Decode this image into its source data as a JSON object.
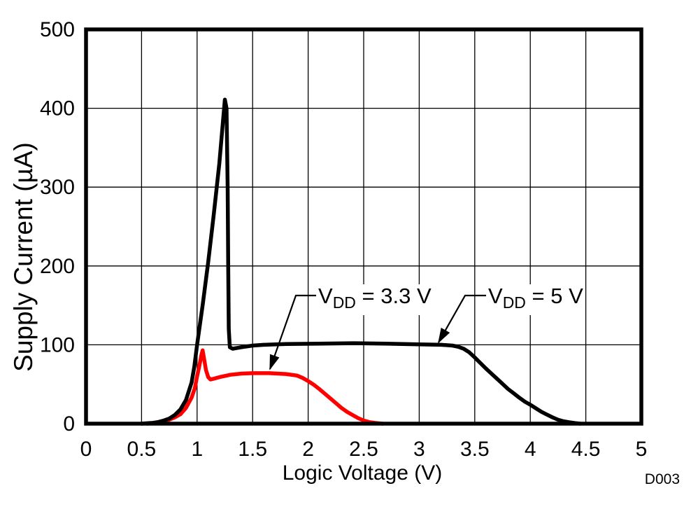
{
  "chart_data": {
    "type": "line",
    "title": "",
    "xlabel": "Logic Voltage (V)",
    "ylabel": "Supply Current (µA)",
    "xlim": [
      0,
      5
    ],
    "ylim": [
      0,
      500
    ],
    "grid": true,
    "legend_position": "none",
    "watermark": "D003",
    "x_ticks": {
      "values": [
        0,
        0.5,
        1,
        1.5,
        2,
        2.5,
        3,
        3.5,
        4,
        4.5,
        5
      ],
      "labels": [
        "0",
        "0.5",
        "1",
        "1.5",
        "2",
        "2.5",
        "3",
        "3.5",
        "4",
        "4.5",
        "5"
      ]
    },
    "y_ticks": {
      "values": [
        0,
        100,
        200,
        300,
        400,
        500
      ],
      "labels": [
        "0",
        "100",
        "200",
        "300",
        "400",
        "500"
      ]
    },
    "series": [
      {
        "name": "VDD = 3.3 V",
        "color": "#ff0000",
        "points": [
          [
            0.55,
            0
          ],
          [
            0.6,
            0.5
          ],
          [
            0.65,
            2
          ],
          [
            0.7,
            3
          ],
          [
            0.75,
            5
          ],
          [
            0.8,
            8
          ],
          [
            0.85,
            12
          ],
          [
            0.9,
            20
          ],
          [
            0.95,
            33
          ],
          [
            0.98,
            45
          ],
          [
            1.0,
            60
          ],
          [
            1.02,
            73
          ],
          [
            1.04,
            88
          ],
          [
            1.05,
            93
          ],
          [
            1.06,
            85
          ],
          [
            1.08,
            68
          ],
          [
            1.1,
            59
          ],
          [
            1.12,
            56
          ],
          [
            1.15,
            57
          ],
          [
            1.2,
            59
          ],
          [
            1.3,
            62
          ],
          [
            1.4,
            63.5
          ],
          [
            1.5,
            64
          ],
          [
            1.65,
            64
          ],
          [
            1.8,
            63
          ],
          [
            1.9,
            61
          ],
          [
            1.95,
            58
          ],
          [
            2.0,
            54
          ],
          [
            2.05,
            49.5
          ],
          [
            2.1,
            44
          ],
          [
            2.15,
            38
          ],
          [
            2.2,
            32
          ],
          [
            2.25,
            26
          ],
          [
            2.3,
            20
          ],
          [
            2.35,
            15
          ],
          [
            2.4,
            11
          ],
          [
            2.45,
            7
          ],
          [
            2.5,
            4
          ],
          [
            2.55,
            2
          ],
          [
            2.6,
            1
          ],
          [
            2.67,
            0
          ]
        ]
      },
      {
        "name": "VDD = 5 V",
        "color": "#000000",
        "points": [
          [
            0.5,
            0
          ],
          [
            0.55,
            0.5
          ],
          [
            0.6,
            1
          ],
          [
            0.65,
            2
          ],
          [
            0.7,
            4
          ],
          [
            0.75,
            6.5
          ],
          [
            0.8,
            11
          ],
          [
            0.85,
            18
          ],
          [
            0.9,
            30
          ],
          [
            0.95,
            52
          ],
          [
            0.975,
            72
          ],
          [
            1.0,
            100
          ],
          [
            1.05,
            150
          ],
          [
            1.1,
            205
          ],
          [
            1.15,
            265
          ],
          [
            1.2,
            330
          ],
          [
            1.25,
            411
          ],
          [
            1.265,
            400
          ],
          [
            1.275,
            300
          ],
          [
            1.28,
            200
          ],
          [
            1.285,
            120
          ],
          [
            1.295,
            97
          ],
          [
            1.32,
            95
          ],
          [
            1.4,
            97
          ],
          [
            1.5,
            99
          ],
          [
            1.6,
            100
          ],
          [
            1.8,
            101
          ],
          [
            2.1,
            101.5
          ],
          [
            2.4,
            102
          ],
          [
            2.7,
            101.5
          ],
          [
            3.0,
            100.5
          ],
          [
            3.2,
            100
          ],
          [
            3.3,
            99
          ],
          [
            3.35,
            97.5
          ],
          [
            3.4,
            95
          ],
          [
            3.45,
            90.5
          ],
          [
            3.5,
            84
          ],
          [
            3.55,
            77
          ],
          [
            3.6,
            70
          ],
          [
            3.65,
            63.5
          ],
          [
            3.7,
            57
          ],
          [
            3.75,
            50.5
          ],
          [
            3.8,
            44
          ],
          [
            3.85,
            38.5
          ],
          [
            3.9,
            33
          ],
          [
            3.95,
            28
          ],
          [
            4.0,
            24
          ],
          [
            4.05,
            19.5
          ],
          [
            4.1,
            15
          ],
          [
            4.15,
            11.5
          ],
          [
            4.2,
            8
          ],
          [
            4.25,
            5
          ],
          [
            4.3,
            3
          ],
          [
            4.35,
            1.8
          ],
          [
            4.4,
            0.8
          ],
          [
            4.45,
            0
          ]
        ]
      }
    ],
    "annotations": [
      {
        "v": "V",
        "sub": "DD",
        "rest": " = 3.3 V",
        "target_series": "VDD = 3.3 V"
      },
      {
        "v": "V",
        "sub": "DD",
        "rest": " = 5 V",
        "target_series": "VDD = 5 V"
      }
    ]
  },
  "colors": {
    "curve_vdd5": "#000000",
    "curve_vdd33": "#ff0000",
    "grid": "#000000",
    "watermark": "#8e979e",
    "background": "#ffffff"
  }
}
